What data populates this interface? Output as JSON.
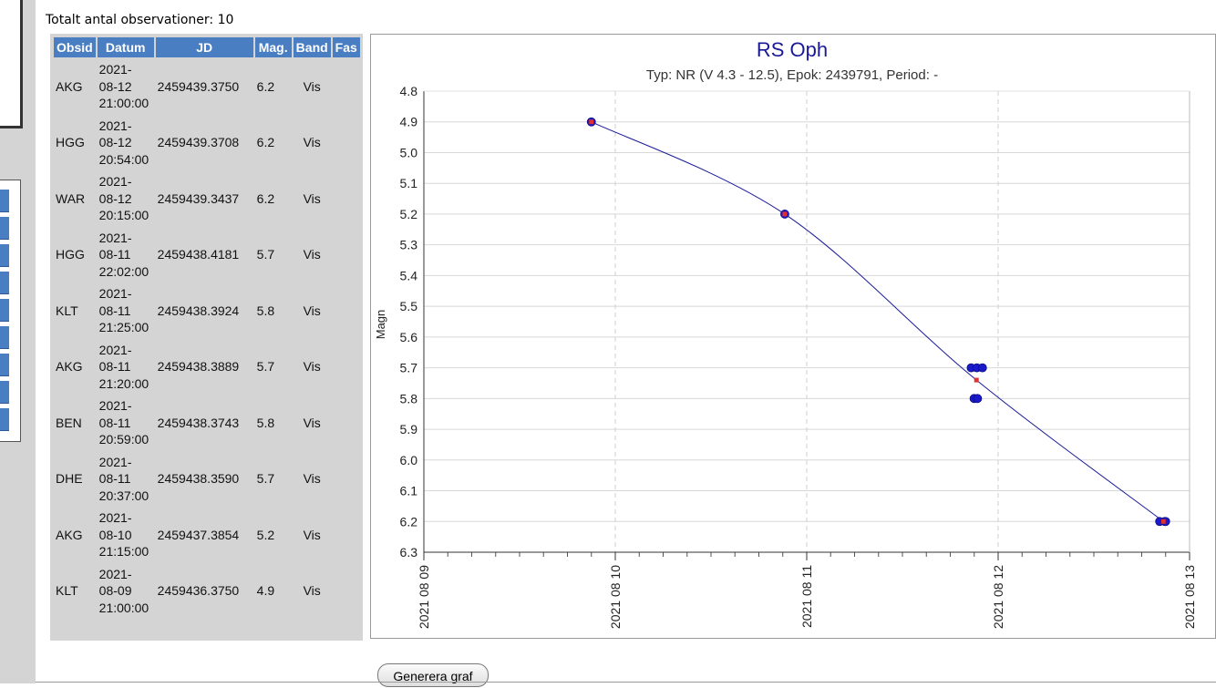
{
  "total_text": "Totalt antal observationer: 10",
  "table": {
    "headers": [
      "Obsid",
      "Datum",
      "JD",
      "Mag.",
      "Band",
      "Fas"
    ],
    "rows": [
      {
        "obsid": "AKG",
        "date_l1": "2021-",
        "date_l2": "08-12",
        "date_l3": "21:00:00",
        "jd": "2459439.3750",
        "mag": "6.2",
        "band": "Vis",
        "fas": ""
      },
      {
        "obsid": "HGG",
        "date_l1": "2021-",
        "date_l2": "08-12",
        "date_l3": "20:54:00",
        "jd": "2459439.3708",
        "mag": "6.2",
        "band": "Vis",
        "fas": ""
      },
      {
        "obsid": "WAR",
        "date_l1": "2021-",
        "date_l2": "08-12",
        "date_l3": "20:15:00",
        "jd": "2459439.3437",
        "mag": "6.2",
        "band": "Vis",
        "fas": ""
      },
      {
        "obsid": "HGG",
        "date_l1": "2021-",
        "date_l2": "08-11",
        "date_l3": "22:02:00",
        "jd": "2459438.4181",
        "mag": "5.7",
        "band": "Vis",
        "fas": ""
      },
      {
        "obsid": "KLT",
        "date_l1": "2021-",
        "date_l2": "08-11",
        "date_l3": "21:25:00",
        "jd": "2459438.3924",
        "mag": "5.8",
        "band": "Vis",
        "fas": ""
      },
      {
        "obsid": "AKG",
        "date_l1": "2021-",
        "date_l2": "08-11",
        "date_l3": "21:20:00",
        "jd": "2459438.3889",
        "mag": "5.7",
        "band": "Vis",
        "fas": ""
      },
      {
        "obsid": "BEN",
        "date_l1": "2021-",
        "date_l2": "08-11",
        "date_l3": "20:59:00",
        "jd": "2459438.3743",
        "mag": "5.8",
        "band": "Vis",
        "fas": ""
      },
      {
        "obsid": "DHE",
        "date_l1": "2021-",
        "date_l2": "08-11",
        "date_l3": "20:37:00",
        "jd": "2459438.3590",
        "mag": "5.7",
        "band": "Vis",
        "fas": ""
      },
      {
        "obsid": "AKG",
        "date_l1": "2021-",
        "date_l2": "08-10",
        "date_l3": "21:15:00",
        "jd": "2459437.3854",
        "mag": "5.2",
        "band": "Vis",
        "fas": ""
      },
      {
        "obsid": "KLT",
        "date_l1": "2021-",
        "date_l2": "08-09",
        "date_l3": "21:00:00",
        "jd": "2459436.3750",
        "mag": "4.9",
        "band": "Vis",
        "fas": ""
      }
    ]
  },
  "chart_data": {
    "type": "scatter",
    "title": "RS Oph",
    "subtitle": "Typ: NR (V 4.3 - 12.5), Epok: 2439791, Period: -",
    "xlabel": "",
    "ylabel": "Magn",
    "x_axis": "date",
    "x_ticks": [
      "2021 08 09",
      "2021 08 10",
      "2021 08 11",
      "2021 08 12",
      "2021 08 13"
    ],
    "xlim": [
      "2021-08-09 00:00",
      "2021-08-13 00:00"
    ],
    "ylim": [
      4.8,
      6.3
    ],
    "y_inverted": true,
    "y_ticks": [
      "4.8",
      "4.9",
      "5.0",
      "5.1",
      "5.2",
      "5.3",
      "5.4",
      "5.5",
      "5.6",
      "5.7",
      "5.8",
      "5.9",
      "6.0",
      "6.1",
      "6.2",
      "6.3"
    ],
    "grid": true,
    "series": [
      {
        "points": [
          {
            "x": "2021-08-09 21:00",
            "y": 4.9
          },
          {
            "x": "2021-08-10 21:15",
            "y": 5.2
          },
          {
            "x": "2021-08-11 20:37",
            "y": 5.7
          },
          {
            "x": "2021-08-11 20:59",
            "y": 5.8
          },
          {
            "x": "2021-08-11 21:20",
            "y": 5.7
          },
          {
            "x": "2021-08-11 21:25",
            "y": 5.8
          },
          {
            "x": "2021-08-11 22:02",
            "y": 5.7
          },
          {
            "x": "2021-08-12 20:15",
            "y": 6.2
          },
          {
            "x": "2021-08-12 20:54",
            "y": 6.2
          },
          {
            "x": "2021-08-12 21:00",
            "y": 6.2
          }
        ]
      }
    ],
    "daily_means": [
      {
        "x": "2021-08-09 21:00",
        "y": 4.9
      },
      {
        "x": "2021-08-10 21:15",
        "y": 5.2
      },
      {
        "x": "2021-08-11 21:17",
        "y": 5.74
      },
      {
        "x": "2021-08-12 20:43",
        "y": 6.2
      }
    ],
    "colors": {
      "points": "#1a1acc",
      "mean": "#e03030",
      "line": "#1a1a9a",
      "title": "#1a1a99"
    }
  },
  "button": {
    "label": "Generera graf"
  }
}
